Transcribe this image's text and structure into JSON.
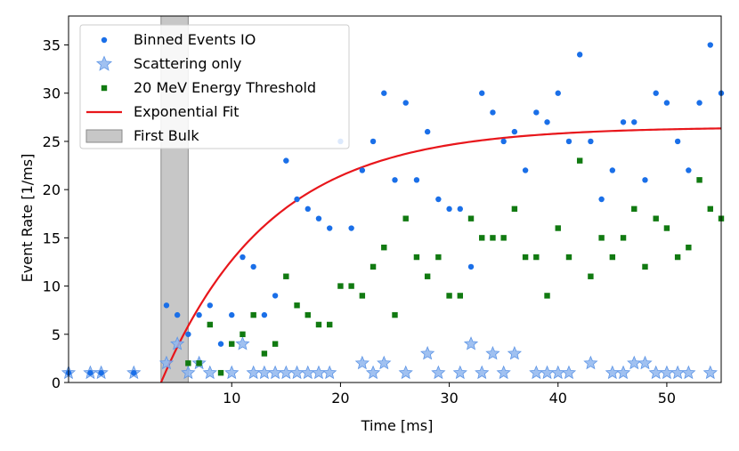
{
  "chart_data": {
    "type": "scatter",
    "title": "",
    "xlabel": "Time [ms]",
    "ylabel": "Event Rate [1/ms]",
    "xlim": [
      -5,
      55
    ],
    "ylim": [
      0,
      38
    ],
    "xticks": [
      10,
      20,
      30,
      40,
      50
    ],
    "yticks": [
      0,
      5,
      10,
      15,
      20,
      25,
      30,
      35
    ],
    "grid": false,
    "legend_position": "top-left",
    "series": [
      {
        "name": "Binned Events IO",
        "marker": "circle",
        "color": "#1a6fe8",
        "points": [
          [
            -5,
            1
          ],
          [
            -3,
            1
          ],
          [
            -2,
            1
          ],
          [
            1,
            1
          ],
          [
            4,
            8
          ],
          [
            5,
            7
          ],
          [
            6,
            5
          ],
          [
            7,
            7
          ],
          [
            8,
            8
          ],
          [
            9,
            4
          ],
          [
            10,
            7
          ],
          [
            11,
            13
          ],
          [
            12,
            12
          ],
          [
            13,
            7
          ],
          [
            14,
            9
          ],
          [
            15,
            23
          ],
          [
            16,
            19
          ],
          [
            17,
            18
          ],
          [
            18,
            17
          ],
          [
            19,
            16
          ],
          [
            20,
            25
          ],
          [
            21,
            16
          ],
          [
            22,
            22
          ],
          [
            23,
            25
          ],
          [
            24,
            30
          ],
          [
            25,
            21
          ],
          [
            26,
            29
          ],
          [
            27,
            21
          ],
          [
            28,
            26
          ],
          [
            29,
            19
          ],
          [
            30,
            18
          ],
          [
            31,
            18
          ],
          [
            32,
            12
          ],
          [
            33,
            30
          ],
          [
            34,
            28
          ],
          [
            35,
            25
          ],
          [
            36,
            26
          ],
          [
            37,
            22
          ],
          [
            38,
            28
          ],
          [
            39,
            27
          ],
          [
            40,
            30
          ],
          [
            41,
            25
          ],
          [
            42,
            34
          ],
          [
            43,
            25
          ],
          [
            44,
            19
          ],
          [
            45,
            22
          ],
          [
            46,
            27
          ],
          [
            47,
            27
          ],
          [
            48,
            21
          ],
          [
            49,
            30
          ],
          [
            50,
            29
          ],
          [
            51,
            25
          ],
          [
            52,
            22
          ],
          [
            53,
            29
          ],
          [
            54,
            35
          ],
          [
            55,
            30
          ]
        ]
      },
      {
        "name": "Scattering only",
        "marker": "star",
        "color": "#8fb6ee",
        "points": [
          [
            -5,
            1
          ],
          [
            -3,
            1
          ],
          [
            -2,
            1
          ],
          [
            1,
            1
          ],
          [
            4,
            2
          ],
          [
            5,
            4
          ],
          [
            6,
            1
          ],
          [
            7,
            2
          ],
          [
            8,
            1
          ],
          [
            10,
            1
          ],
          [
            11,
            4
          ],
          [
            12,
            1
          ],
          [
            13,
            1
          ],
          [
            14,
            1
          ],
          [
            15,
            1
          ],
          [
            16,
            1
          ],
          [
            17,
            1
          ],
          [
            18,
            1
          ],
          [
            19,
            1
          ],
          [
            22,
            2
          ],
          [
            23,
            1
          ],
          [
            24,
            2
          ],
          [
            26,
            1
          ],
          [
            28,
            3
          ],
          [
            29,
            1
          ],
          [
            31,
            1
          ],
          [
            32,
            4
          ],
          [
            33,
            1
          ],
          [
            34,
            3
          ],
          [
            35,
            1
          ],
          [
            36,
            3
          ],
          [
            38,
            1
          ],
          [
            39,
            1
          ],
          [
            40,
            1
          ],
          [
            41,
            1
          ],
          [
            43,
            2
          ],
          [
            45,
            1
          ],
          [
            46,
            1
          ],
          [
            47,
            2
          ],
          [
            48,
            2
          ],
          [
            49,
            1
          ],
          [
            50,
            1
          ],
          [
            51,
            1
          ],
          [
            52,
            1
          ],
          [
            54,
            1
          ]
        ]
      },
      {
        "name": "20 MeV Energy Threshold",
        "marker": "square",
        "color": "#117a11",
        "points": [
          [
            6,
            2
          ],
          [
            7,
            2
          ],
          [
            8,
            6
          ],
          [
            9,
            1
          ],
          [
            10,
            4
          ],
          [
            11,
            5
          ],
          [
            12,
            7
          ],
          [
            13,
            3
          ],
          [
            14,
            4
          ],
          [
            15,
            11
          ],
          [
            16,
            8
          ],
          [
            17,
            7
          ],
          [
            18,
            6
          ],
          [
            19,
            6
          ],
          [
            20,
            10
          ],
          [
            21,
            10
          ],
          [
            22,
            9
          ],
          [
            23,
            12
          ],
          [
            24,
            14
          ],
          [
            25,
            7
          ],
          [
            26,
            17
          ],
          [
            27,
            13
          ],
          [
            28,
            11
          ],
          [
            29,
            13
          ],
          [
            30,
            9
          ],
          [
            31,
            9
          ],
          [
            32,
            17
          ],
          [
            33,
            15
          ],
          [
            34,
            15
          ],
          [
            35,
            15
          ],
          [
            36,
            18
          ],
          [
            37,
            13
          ],
          [
            38,
            13
          ],
          [
            39,
            9
          ],
          [
            40,
            16
          ],
          [
            41,
            13
          ],
          [
            42,
            23
          ],
          [
            43,
            11
          ],
          [
            44,
            15
          ],
          [
            45,
            13
          ],
          [
            46,
            15
          ],
          [
            47,
            18
          ],
          [
            48,
            12
          ],
          [
            49,
            17
          ],
          [
            50,
            16
          ],
          [
            51,
            13
          ],
          [
            52,
            14
          ],
          [
            53,
            21
          ],
          [
            54,
            18
          ],
          [
            55,
            17
          ]
        ]
      },
      {
        "name": "Exponential Fit",
        "type": "line",
        "color": "#e8161b",
        "function": "A*(1-exp(-(t-t0)/tau))",
        "params": {
          "A": 26.5,
          "t0": 3.5,
          "tau": 10
        }
      }
    ],
    "bands": [
      {
        "name": "First Bulk",
        "x": [
          3.5,
          6
        ],
        "color": "#bdbdbd"
      }
    ],
    "legend": [
      "Binned Events IO",
      "Scattering only",
      "20 MeV Energy Threshold",
      "Exponential Fit",
      "First Bulk"
    ]
  }
}
